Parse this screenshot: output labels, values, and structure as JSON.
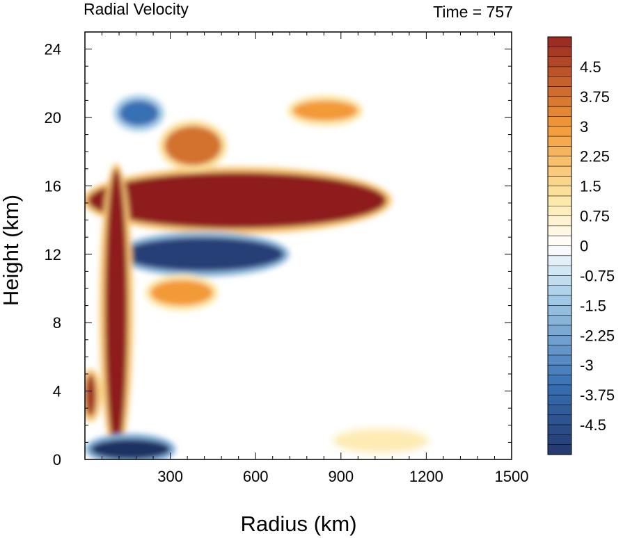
{
  "chart_data": {
    "type": "heatmap",
    "title": "Radial Velocity",
    "subtitle": "Time = 757",
    "xlabel": "Radius (km)",
    "ylabel": "Height (km)",
    "xlim": [
      0,
      1500
    ],
    "ylim": [
      0,
      25
    ],
    "xticks": [
      300,
      600,
      900,
      1200,
      1500
    ],
    "yticks": [
      0,
      4,
      8,
      12,
      16,
      20,
      24
    ],
    "grid": false,
    "colorbar": {
      "placement": "right",
      "min": -5.25,
      "max": 5.25,
      "step": 0.25,
      "labels": [
        "4.5",
        "3.75",
        "3",
        "2.25",
        "1.5",
        "0.75",
        "0",
        "-0.75",
        "-1.5",
        "-2.25",
        "-3",
        "-3.75",
        "-4.5"
      ],
      "colors": {
        "strong_negative": "#1f3062",
        "negative": "#3870b4",
        "weak_negative": "#a9d0ea",
        "near_zero": "#ffffff",
        "weak_positive": "#fde7a4",
        "positive": "#f39a37",
        "strong_positive": "#8e1a1e"
      }
    },
    "features": [
      {
        "label": "upper-level outflow jet",
        "r": [
          10,
          1060
        ],
        "z": [
          13.5,
          16.8
        ],
        "value": 5.5
      },
      {
        "label": "inflow layer below outflow",
        "r": [
          130,
          700
        ],
        "z": [
          11.0,
          13.0
        ],
        "value": -5.0
      },
      {
        "label": "eyewall updraft column",
        "r": [
          70,
          150
        ],
        "z": [
          0.5,
          17
        ],
        "value": 5.5
      },
      {
        "label": "boundary layer inflow",
        "r": [
          20,
          300
        ],
        "z": [
          0,
          1.2
        ],
        "value": -5.5
      },
      {
        "label": "inner-core outflow",
        "r": [
          0,
          40
        ],
        "z": [
          2.5,
          5
        ],
        "value": 5.0
      },
      {
        "label": "upper outflow band",
        "r": [
          280,
          480
        ],
        "z": [
          17.2,
          19.5
        ],
        "value": 3.8
      },
      {
        "label": "upper inflow band",
        "r": [
          120,
          260
        ],
        "z": [
          19.5,
          21
        ],
        "value": -3.5
      },
      {
        "label": "far-field outflow",
        "r": [
          730,
          960
        ],
        "z": [
          19.8,
          21
        ],
        "value": 3.0
      },
      {
        "label": "mid-level outflow",
        "r": [
          230,
          450
        ],
        "z": [
          9.0,
          10.5
        ],
        "value": 3.0
      },
      {
        "label": "far-field lower outflow",
        "r": [
          880,
          1200
        ],
        "z": [
          0.5,
          1.7
        ],
        "value": 1.0
      }
    ]
  }
}
